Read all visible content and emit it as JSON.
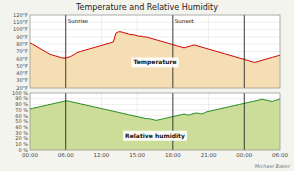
{
  "chart_data": [
    {
      "type": "area",
      "title": "Temperature and Relative Humidity",
      "series": [
        {
          "name": "Temperature",
          "color": "#cc0000",
          "fill_color": "#f5deb3",
          "values": [
            82,
            80,
            78,
            76,
            74,
            72,
            70,
            68,
            66,
            65,
            64,
            63,
            62,
            61,
            61,
            62,
            63,
            65,
            67,
            69,
            70,
            71,
            72,
            73,
            74,
            75,
            76,
            77,
            78,
            79,
            80,
            81,
            82,
            83,
            95,
            97,
            97,
            96,
            95,
            94,
            93,
            93,
            92,
            91,
            91,
            90,
            90,
            89,
            88,
            87,
            86,
            85,
            84,
            83,
            82,
            81,
            80,
            79,
            78,
            77,
            76,
            75,
            76,
            77,
            78,
            79,
            78,
            77,
            76,
            75,
            74,
            73,
            72,
            71,
            70,
            69,
            68,
            67,
            66,
            65,
            64,
            63,
            62,
            61,
            60,
            59,
            58,
            57,
            56,
            55,
            56,
            57,
            58,
            59,
            60,
            61,
            62,
            63,
            64,
            65
          ]
        }
      ],
      "xlim": [
        0,
        99
      ],
      "xticks": [
        0,
        14.142857142857142,
        28.285714285714285,
        42.42857142857143,
        56.57142857142857,
        70.71428571428571,
        84.85714285714286,
        99
      ],
      "ylim": [
        20,
        120
      ],
      "yticks": [
        {
          "value": 20,
          "label": "20°F"
        },
        {
          "value": 30,
          "label": "30°F"
        },
        {
          "value": 40,
          "label": "40°F"
        },
        {
          "value": 50,
          "label": "50°F"
        },
        {
          "value": 60,
          "label": "60°F"
        },
        {
          "value": 70,
          "label": "70°F"
        },
        {
          "value": 80,
          "label": "80°F"
        },
        {
          "value": 90,
          "label": "90°F"
        },
        {
          "value": 100,
          "label": "100°F"
        },
        {
          "value": 110,
          "label": "110°F"
        },
        {
          "value": 120,
          "label": "120°F"
        }
      ],
      "tick_labels": "y",
      "grid": true,
      "vlines": [
        14.142857142857142,
        56.57142857142857,
        84.85714285714286
      ],
      "annotations": [
        {
          "text": "Sunrise",
          "x": 14.142857142857142,
          "y": 115
        },
        {
          "text": "Sunset",
          "x": 56.57142857142857,
          "y": 115
        }
      ]
    },
    {
      "type": "area",
      "series": [
        {
          "name": "Relative humidity",
          "color": "#228B22",
          "fill_color": "#ccdd99",
          "values": [
            72,
            73,
            74,
            75,
            76,
            77,
            78,
            79,
            80,
            81,
            82,
            83,
            84,
            85,
            86,
            86,
            85,
            84,
            83,
            82,
            81,
            80,
            79,
            78,
            77,
            76,
            75,
            74,
            73,
            72,
            71,
            70,
            69,
            68,
            67,
            66,
            65,
            64,
            63,
            62,
            61,
            60,
            59,
            58,
            57,
            56,
            55,
            55,
            54,
            53,
            52,
            53,
            54,
            55,
            56,
            57,
            58,
            59,
            60,
            61,
            62,
            63,
            62,
            61,
            63,
            64,
            65,
            64,
            63,
            65,
            67,
            68,
            69,
            70,
            71,
            72,
            73,
            74,
            75,
            76,
            77,
            78,
            79,
            80,
            81,
            82,
            83,
            84,
            85,
            86,
            87,
            88,
            89,
            88,
            87,
            86,
            85,
            87,
            88,
            90
          ]
        }
      ],
      "xlim": [
        0,
        99
      ],
      "xticks": [
        {
          "value": 0,
          "label": "00:00"
        },
        {
          "value": 14.142857142857142,
          "label": "06:00"
        },
        {
          "value": 28.285714285714285,
          "label": "12:00"
        },
        {
          "value": 42.42857142857143,
          "label": "15:00"
        },
        {
          "value": 56.57142857142857,
          "label": "18:00"
        },
        {
          "value": 70.71428571428571,
          "label": "21:00"
        },
        {
          "value": 84.85714285714286,
          "label": "00:00"
        },
        {
          "value": 99,
          "label": "06:00"
        }
      ],
      "ylim": [
        0,
        100
      ],
      "yticks": [
        {
          "value": 0,
          "label": "0 %"
        },
        {
          "value": 10,
          "label": "10 %"
        },
        {
          "value": 20,
          "label": "20 %"
        },
        {
          "value": 30,
          "label": "30 %"
        },
        {
          "value": 40,
          "label": "40 %"
        },
        {
          "value": 50,
          "label": "50 %"
        },
        {
          "value": 60,
          "label": "60 %"
        },
        {
          "value": 70,
          "label": "70 %"
        },
        {
          "value": 80,
          "label": "80 %"
        },
        {
          "value": 90,
          "label": "90 %"
        },
        {
          "value": 100,
          "label": "100 %"
        }
      ],
      "grid": true,
      "vlines": [
        14.142857142857142,
        56.57142857142857,
        84.85714285714286
      ],
      "credit": "Michael Baker"
    }
  ]
}
